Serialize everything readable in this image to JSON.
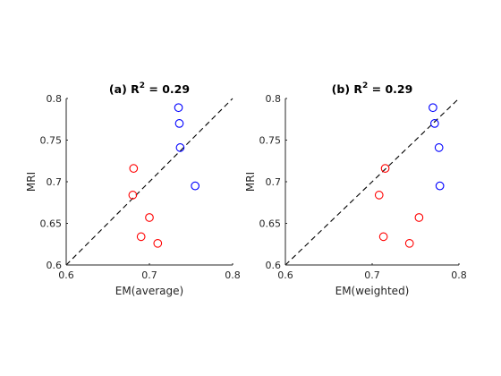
{
  "chart_data": [
    {
      "type": "scatter",
      "title_prefix": "(a) R",
      "title_sup": "2",
      "title_suffix": " = 0.29",
      "xlabel": "EM(average)",
      "ylabel": "MRI",
      "xlim": [
        0.6,
        0.8
      ],
      "ylim": [
        0.6,
        0.8
      ],
      "xticks": [
        0.6,
        0.7,
        0.8
      ],
      "xtick_labels": [
        "0.6",
        "0.7",
        "0.8"
      ],
      "yticks": [
        0.6,
        0.65,
        0.7,
        0.75,
        0.8
      ],
      "ytick_labels": [
        "0.6",
        "0.65",
        "0.7",
        "0.75",
        "0.8"
      ],
      "reference_line": "y = x",
      "grid": false,
      "series": [
        {
          "color": "#0000ff",
          "x": [
            0.735,
            0.736,
            0.737,
            0.755
          ],
          "y": [
            0.789,
            0.77,
            0.741,
            0.695
          ]
        },
        {
          "color": "#ff0000",
          "x": [
            0.681,
            0.68,
            0.7,
            0.69,
            0.71
          ],
          "y": [
            0.716,
            0.684,
            0.657,
            0.634,
            0.626
          ]
        }
      ]
    },
    {
      "type": "scatter",
      "title_prefix": "(b) R",
      "title_sup": "2",
      "title_suffix": " = 0.29",
      "xlabel": "EM(weighted)",
      "ylabel": "MRI",
      "xlim": [
        0.6,
        0.8
      ],
      "ylim": [
        0.6,
        0.8
      ],
      "xticks": [
        0.6,
        0.7,
        0.8
      ],
      "xtick_labels": [
        "0.6",
        "0.7",
        "0.8"
      ],
      "yticks": [
        0.6,
        0.65,
        0.7,
        0.75,
        0.8
      ],
      "ytick_labels": [
        "0.6",
        "0.65",
        "0.7",
        "0.75",
        "0.8"
      ],
      "reference_line": "y = x",
      "grid": false,
      "series": [
        {
          "color": "#0000ff",
          "x": [
            0.77,
            0.772,
            0.777,
            0.778
          ],
          "y": [
            0.789,
            0.77,
            0.741,
            0.695
          ]
        },
        {
          "color": "#ff0000",
          "x": [
            0.715,
            0.708,
            0.754,
            0.713,
            0.743
          ],
          "y": [
            0.716,
            0.684,
            0.657,
            0.634,
            0.626
          ]
        }
      ]
    }
  ]
}
